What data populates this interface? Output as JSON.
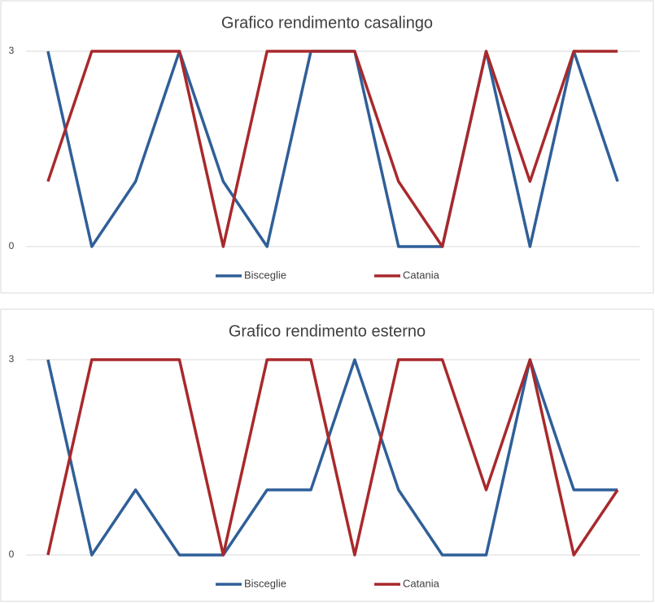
{
  "chart_data": [
    {
      "type": "line",
      "title": "Grafico rendimento casalingo",
      "categories": [
        null,
        null,
        null,
        null,
        null,
        null,
        null,
        null,
        null,
        null,
        null,
        null,
        null,
        null
      ],
      "series": [
        {
          "name": "Bisceglie",
          "color": "#2f5f98",
          "values": [
            3,
            0,
            1,
            3,
            1,
            0,
            3,
            3,
            0,
            0,
            3,
            0,
            3,
            1
          ]
        },
        {
          "name": "Catania",
          "color": "#a8292c",
          "values": [
            1,
            3,
            3,
            3,
            0,
            3,
            3,
            3,
            1,
            0,
            3,
            1,
            3,
            3
          ]
        }
      ],
      "ylim": [
        0,
        3
      ],
      "yticks": [
        0,
        3
      ],
      "grid": true,
      "legend": "bottom"
    },
    {
      "type": "line",
      "title": "Grafico rendimento esterno",
      "categories": [
        null,
        null,
        null,
        null,
        null,
        null,
        null,
        null,
        null,
        null,
        null,
        null,
        null,
        null
      ],
      "series": [
        {
          "name": "Bisceglie",
          "color": "#2f5f98",
          "values": [
            3,
            0,
            1,
            0,
            0,
            1,
            1,
            3,
            1,
            0,
            0,
            3,
            1,
            1
          ]
        },
        {
          "name": "Catania",
          "color": "#a8292c",
          "values": [
            0,
            3,
            3,
            3,
            0,
            3,
            3,
            0,
            3,
            3,
            1,
            3,
            0,
            1
          ]
        }
      ],
      "ylim": [
        0,
        3
      ],
      "yticks": [
        0,
        3
      ],
      "grid": true,
      "legend": "bottom"
    }
  ]
}
